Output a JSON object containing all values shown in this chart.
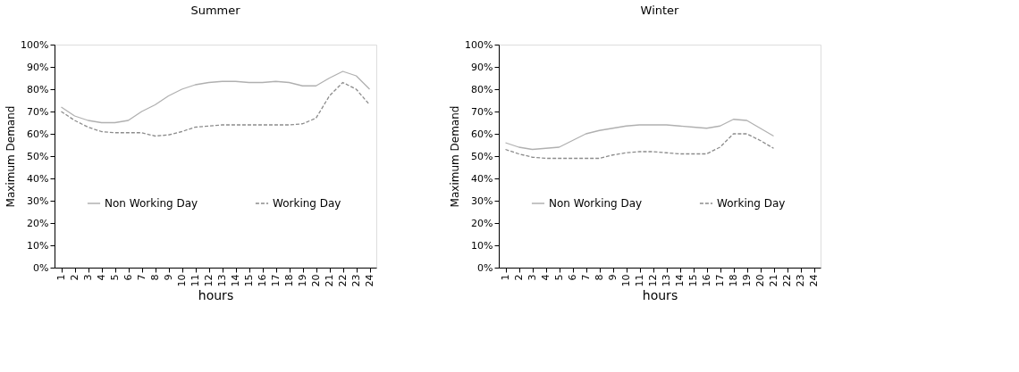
{
  "chart_data": [
    {
      "type": "line",
      "title": "Summer",
      "xlabel": "hours",
      "ylabel": "Maximum Demand",
      "categories": [
        "1",
        "2",
        "3",
        "4",
        "5",
        "6",
        "7",
        "8",
        "9",
        "10",
        "11",
        "12",
        "13",
        "14",
        "15",
        "16",
        "17",
        "18",
        "19",
        "20",
        "21",
        "22",
        "23",
        "24"
      ],
      "series": [
        {
          "name": "Non Working Day",
          "color": "#b0b0b0",
          "line_style": "solid",
          "values": [
            72,
            68,
            66,
            65,
            65,
            66,
            70,
            73,
            77,
            80,
            82,
            83,
            83.5,
            83.5,
            83,
            83,
            83.5,
            83,
            81.5,
            81.5,
            85,
            88,
            86,
            80
          ]
        },
        {
          "name": "Working Day",
          "color": "#8c8c8c",
          "line_style": "dashed",
          "values": [
            70,
            66,
            63,
            61,
            60.5,
            60.5,
            60.5,
            59,
            59.5,
            61,
            63,
            63.5,
            64,
            64,
            64,
            64,
            64,
            64,
            64.5,
            67,
            77,
            83,
            80,
            73
          ]
        }
      ],
      "ylim": [
        0,
        100
      ],
      "yticks": [
        {
          "value": 0,
          "label": "0%"
        },
        {
          "value": 10,
          "label": "10%"
        },
        {
          "value": 20,
          "label": "20%"
        },
        {
          "value": 30,
          "label": "30%"
        },
        {
          "value": 40,
          "label": "40%"
        },
        {
          "value": 50,
          "label": "50%"
        },
        {
          "value": 60,
          "label": "60%"
        },
        {
          "value": 70,
          "label": "70%"
        },
        {
          "value": 80,
          "label": "80%"
        },
        {
          "value": 90,
          "label": "90%"
        },
        {
          "value": 100,
          "label": "100%"
        }
      ],
      "grid": false,
      "legend": "bottom",
      "marker": "none"
    },
    {
      "type": "line",
      "title": "Winter",
      "xlabel": "hours",
      "ylabel": "Maximum Demand",
      "categories": [
        "1",
        "2",
        "3",
        "4",
        "5",
        "6",
        "7",
        "8",
        "9",
        "10",
        "11",
        "12",
        "13",
        "14",
        "15",
        "16",
        "17",
        "18",
        "19",
        "20",
        "21",
        "22",
        "23",
        "24"
      ],
      "series": [
        {
          "name": "Non Working Day",
          "color": "#b0b0b0",
          "line_style": "solid",
          "values": [
            56,
            54,
            53,
            53.5,
            54,
            57,
            60,
            61.5,
            62.5,
            63.5,
            64,
            64,
            64,
            63.5,
            63,
            62.5,
            63.5,
            66.5,
            66,
            62.5,
            59,
            null,
            null,
            null
          ]
        },
        {
          "name": "Working Day",
          "color": "#8c8c8c",
          "line_style": "dashed",
          "values": [
            53,
            51,
            49.5,
            49,
            49,
            49,
            49,
            49,
            50.5,
            51.5,
            52,
            52,
            51.5,
            51,
            51,
            51,
            54,
            60,
            60,
            57,
            53.5,
            null,
            null,
            null
          ]
        }
      ],
      "ylim": [
        0,
        100
      ],
      "yticks": [
        {
          "value": 0,
          "label": "0%"
        },
        {
          "value": 10,
          "label": "10%"
        },
        {
          "value": 20,
          "label": "20%"
        },
        {
          "value": 30,
          "label": "30%"
        },
        {
          "value": 40,
          "label": "40%"
        },
        {
          "value": 50,
          "label": "50%"
        },
        {
          "value": 60,
          "label": "60%"
        },
        {
          "value": 70,
          "label": "70%"
        },
        {
          "value": 80,
          "label": "80%"
        },
        {
          "value": 90,
          "label": "90%"
        },
        {
          "value": 100,
          "label": "100%"
        }
      ],
      "grid": false,
      "legend": "bottom",
      "marker": "none"
    }
  ]
}
